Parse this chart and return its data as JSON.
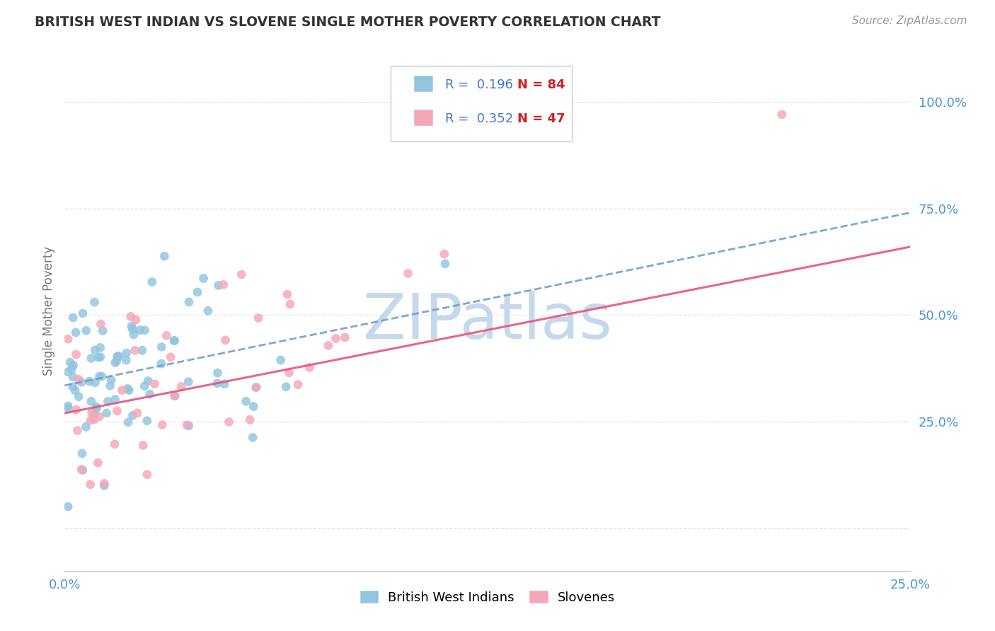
{
  "title": "BRITISH WEST INDIAN VS SLOVENE SINGLE MOTHER POVERTY CORRELATION CHART",
  "source": "Source: ZipAtlas.com",
  "ylabel": "Single Mother Poverty",
  "xlim": [
    0.0,
    0.25
  ],
  "ylim": [
    -0.1,
    1.12
  ],
  "yticks": [
    0.0,
    0.25,
    0.5,
    0.75,
    1.0
  ],
  "ytick_labels": [
    "",
    "25.0%",
    "50.0%",
    "75.0%",
    "100.0%"
  ],
  "xtick_labels": [
    "0.0%",
    "25.0%"
  ],
  "color_blue": "#92C5DE",
  "color_pink": "#F4A7B9",
  "line_blue_color": "#6699CC",
  "line_pink_color": "#E8547A",
  "tick_label_color": "#4D94D5",
  "watermark": "ZIPatlas",
  "watermark_color": "#C5D8EC",
  "legend_r_blue": "R =  0.196",
  "legend_n_blue": "N = 84",
  "legend_r_pink": "R =  0.352",
  "legend_n_pink": "N = 47",
  "legend_text_color": "#4477CC",
  "legend_n_color": "#CC2222",
  "grid_color": "#DDDDDD",
  "spine_color": "#BBBBBB"
}
